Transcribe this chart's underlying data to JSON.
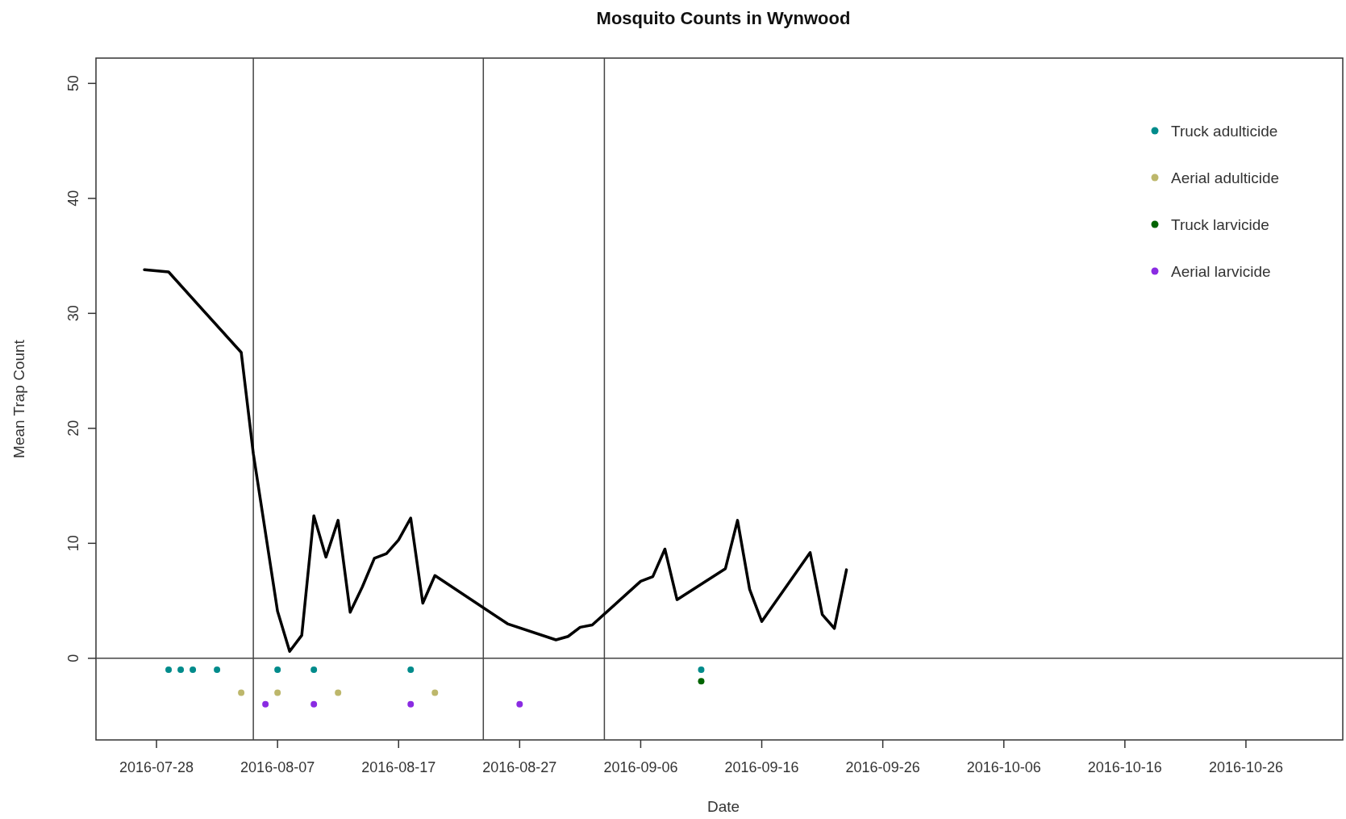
{
  "chart_data": {
    "type": "line",
    "title": "Mosquito Counts in Wynwood",
    "xlabel": "Date",
    "ylabel": "Mean Trap Count",
    "xlim": [
      "2016-07-23",
      "2016-11-03"
    ],
    "xticks": [
      "2016-07-28",
      "2016-08-07",
      "2016-08-17",
      "2016-08-27",
      "2016-09-06",
      "2016-09-16",
      "2016-09-26",
      "2016-10-06",
      "2016-10-16",
      "2016-10-26"
    ],
    "ylim": [
      -7.1,
      52.2
    ],
    "yticks": [
      0,
      10,
      20,
      30,
      40,
      50
    ],
    "legend": "top right",
    "marker": "circle",
    "grid": false,
    "ref_lines": [
      {
        "axis": "y",
        "value": 0
      },
      {
        "axis": "x",
        "value": "2016-08-05"
      },
      {
        "axis": "x",
        "value": "2016-08-24"
      },
      {
        "axis": "x",
        "value": "2016-09-03"
      }
    ],
    "series": [
      {
        "color": "#000000",
        "marker": "none",
        "x": [
          "2016-07-27",
          "2016-07-29",
          "2016-08-04",
          "2016-08-05",
          "2016-08-07",
          "2016-08-08",
          "2016-08-09",
          "2016-08-10",
          "2016-08-11",
          "2016-08-12",
          "2016-08-13",
          "2016-08-14",
          "2016-08-15",
          "2016-08-16",
          "2016-08-17",
          "2016-08-18",
          "2016-08-19",
          "2016-08-20",
          "2016-08-26",
          "2016-08-30",
          "2016-08-31",
          "2016-09-01",
          "2016-09-02",
          "2016-09-06",
          "2016-09-07",
          "2016-09-08",
          "2016-09-09",
          "2016-09-13",
          "2016-09-14",
          "2016-09-15",
          "2016-09-16",
          "2016-09-20",
          "2016-09-21",
          "2016-09-22",
          "2016-09-23"
        ],
        "values": [
          33.8,
          33.6,
          26.6,
          17.8,
          4.1,
          0.6,
          2.0,
          12.4,
          8.8,
          12.0,
          4.0,
          6.2,
          8.7,
          9.1,
          10.3,
          12.2,
          4.8,
          7.2,
          3.0,
          1.6,
          1.9,
          2.7,
          2.9,
          6.7,
          7.1,
          9.5,
          5.1,
          7.8,
          12.0,
          6.0,
          3.2,
          9.2,
          3.8,
          2.6,
          7.7
        ]
      },
      {
        "type": "scatter",
        "name": "Truck adulticide",
        "color": "#008b8b",
        "x": [
          "2016-07-29",
          "2016-07-30",
          "2016-07-31",
          "2016-08-02",
          "2016-08-07",
          "2016-08-10",
          "2016-08-18",
          "2016-09-11"
        ],
        "values": [
          -1,
          -1,
          -1,
          -1,
          -1,
          -1,
          -1,
          -1
        ]
      },
      {
        "type": "scatter",
        "name": "Aerial adulticide",
        "color": "#bdb76b",
        "x": [
          "2016-08-04",
          "2016-08-07",
          "2016-08-12",
          "2016-08-20"
        ],
        "values": [
          -3,
          -3,
          -3,
          -3
        ]
      },
      {
        "type": "scatter",
        "name": "Truck larvicide",
        "color": "#006400",
        "x": [
          "2016-09-11"
        ],
        "values": [
          -2
        ]
      },
      {
        "type": "scatter",
        "name": "Aerial larvicide",
        "color": "#8a2be2",
        "x": [
          "2016-08-06",
          "2016-08-10",
          "2016-08-18",
          "2016-08-27"
        ],
        "values": [
          -4,
          -4,
          -4,
          -4
        ]
      }
    ]
  }
}
